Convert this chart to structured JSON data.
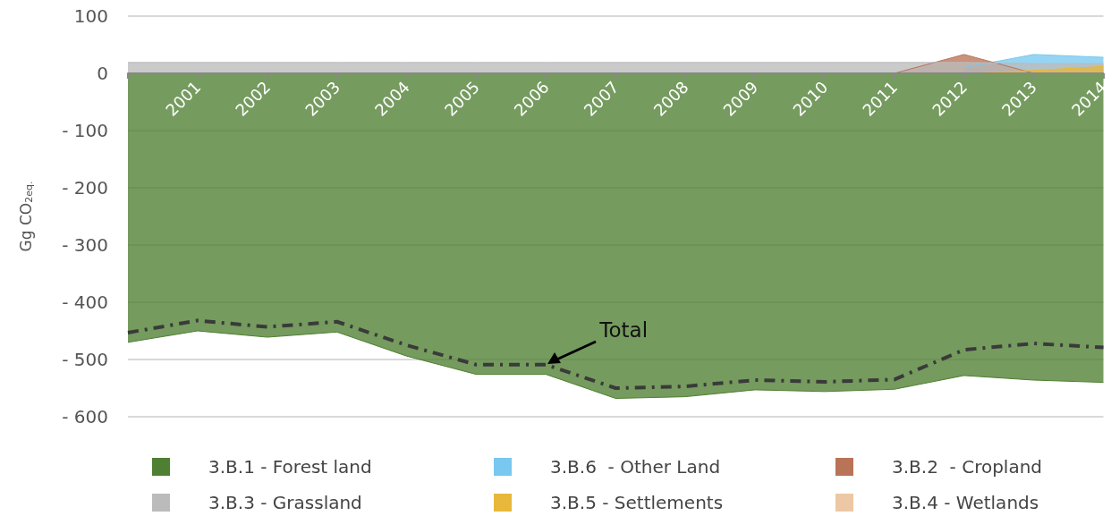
{
  "chart_data": {
    "type": "area",
    "ylabel": "Gg CO$_{2eq.}$",
    "categories": [
      null,
      "2001",
      "2002",
      "2003",
      "2004",
      "2005",
      "2006",
      "2007",
      "2008",
      "2009",
      "2010",
      "2011",
      "2012",
      "2013",
      "2014"
    ],
    "series": [
      {
        "name": "3.B.1 - Forest land",
        "color": "#4e7f32",
        "values": [
          -470,
          -450,
          -461,
          -452,
          -494,
          -526,
          -526,
          -568,
          -565,
          -553,
          -556,
          -552,
          -528,
          -536,
          -540
        ]
      },
      {
        "name": "3.B.6  - Other Land",
        "color": "#78c8f0",
        "values": [
          null,
          null,
          null,
          null,
          null,
          null,
          null,
          null,
          null,
          null,
          null,
          null,
          10,
          33,
          28
        ]
      },
      {
        "name": "3.B.2  - Cropland",
        "color": "#b87358",
        "values": [
          null,
          null,
          null,
          null,
          null,
          null,
          null,
          null,
          null,
          null,
          null,
          0,
          33,
          0,
          null
        ]
      },
      {
        "name": "3.B.3 - Grassland",
        "color": "#bbbbbb",
        "values": [
          19,
          19,
          19,
          19,
          19,
          19,
          19,
          19,
          19,
          19,
          19,
          19,
          19,
          17,
          17
        ]
      },
      {
        "name": "3.B.5 - Settlements",
        "color": "#e8b83a",
        "values": [
          null,
          null,
          null,
          null,
          null,
          null,
          null,
          null,
          null,
          null,
          null,
          null,
          0,
          5,
          12
        ]
      },
      {
        "name": "3.B.4 - Wetlands",
        "color": "#ecc8a4",
        "values": [
          null,
          null,
          null,
          null,
          null,
          null,
          null,
          null,
          null,
          null,
          null,
          null,
          null,
          null,
          null
        ]
      },
      {
        "type": "line",
        "color": "#3a3a3a",
        "line_style": "dashed",
        "values": [
          -453,
          -432,
          -443,
          -434,
          -475,
          -509,
          -509,
          -550,
          -547,
          -536,
          -539,
          -535,
          -483,
          -472,
          -479
        ]
      }
    ],
    "annotations": [
      {
        "text": "Total",
        "x": "2006",
        "y": -509
      }
    ],
    "ylim": [
      -600,
      100
    ],
    "yticks": [
      100,
      0,
      {
        "value": -100,
        "label": "- 100"
      },
      {
        "value": -200,
        "label": "- 200"
      },
      {
        "value": -300,
        "label": "- 300"
      },
      {
        "value": -400,
        "label": "- 400"
      },
      {
        "value": -500,
        "label": "- 500"
      },
      {
        "value": -600,
        "label": "- 600"
      }
    ],
    "grid": "y",
    "legend": "bottom",
    "marker": "none"
  }
}
